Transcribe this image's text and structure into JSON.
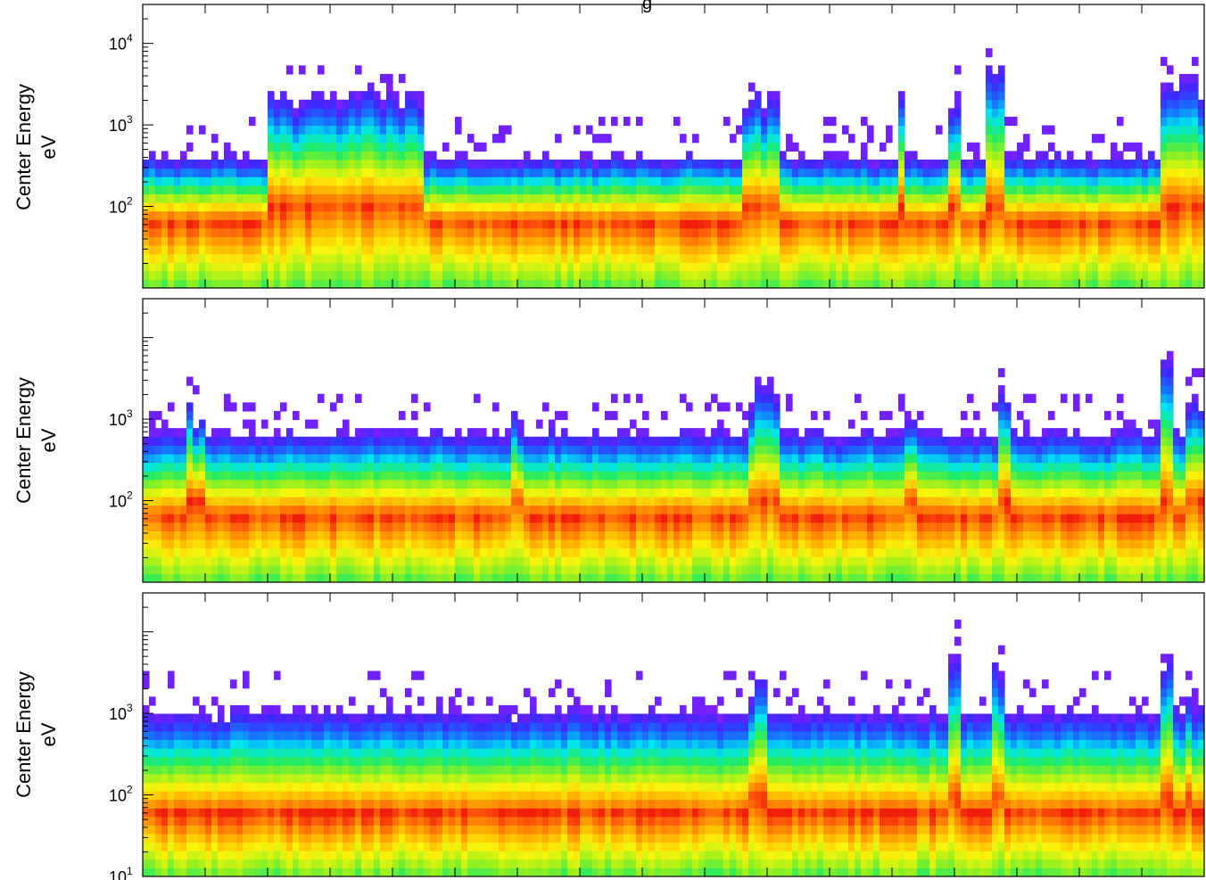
{
  "figure": {
    "title_fragment": "g"
  },
  "chart_data": [
    {
      "type": "heatmap",
      "panel": "top",
      "ylabel_line1": "Center Energy",
      "ylabel_line2": "eV",
      "yscale": "log",
      "ylim": [
        10,
        30000
      ],
      "y_ticks": [
        {
          "base": "10",
          "exp": "4",
          "value": 10000
        },
        {
          "base": "10",
          "exp": "3",
          "value": 1000
        },
        {
          "base": "10",
          "exp": "2",
          "value": 100
        }
      ],
      "x_ticks_count": 17,
      "events": [
        {
          "x0": 0.12,
          "x1": 0.265,
          "peak": 2500
        },
        {
          "x0": 0.565,
          "x1": 0.6,
          "peak": 2500
        },
        {
          "x0": 0.71,
          "x1": 0.72,
          "peak": 2800
        },
        {
          "x0": 0.76,
          "x1": 0.77,
          "peak": 2500
        },
        {
          "x0": 0.795,
          "x1": 0.81,
          "peak": 5000
        },
        {
          "x0": 0.96,
          "x1": 0.975,
          "peak": 2800
        },
        {
          "x0": 0.975,
          "x1": 1.0,
          "peak": 3500
        }
      ],
      "baseline_top_ev": 350,
      "peak_band_ev": 60,
      "bottom_value_ev": 11
    },
    {
      "type": "heatmap",
      "panel": "middle",
      "ylabel_line1": "Center Energy",
      "ylabel_line2": "eV",
      "yscale": "log",
      "ylim": [
        10,
        30000
      ],
      "y_ticks": [
        {
          "base": "10",
          "exp": "3",
          "value": 1000
        },
        {
          "base": "10",
          "exp": "2",
          "value": 100
        }
      ],
      "x_ticks_count": 17,
      "events": [
        {
          "x0": 0.04,
          "x1": 0.06,
          "peak": 1500
        },
        {
          "x0": 0.35,
          "x1": 0.36,
          "peak": 1200
        },
        {
          "x0": 0.57,
          "x1": 0.6,
          "peak": 2500
        },
        {
          "x0": 0.72,
          "x1": 0.73,
          "peak": 1500
        },
        {
          "x0": 0.805,
          "x1": 0.82,
          "peak": 3000
        },
        {
          "x0": 0.96,
          "x1": 0.97,
          "peak": 5000
        },
        {
          "x0": 0.98,
          "x1": 1.0,
          "peak": 1700
        }
      ],
      "baseline_top_ev": 600,
      "peak_band_ev": 60,
      "bottom_value_ev": 11
    },
    {
      "type": "heatmap",
      "panel": "bottom",
      "ylabel_line1": "Center Energy",
      "ylabel_line2": "eV",
      "yscale": "log",
      "ylim": [
        10,
        30000
      ],
      "y_ticks": [
        {
          "base": "10",
          "exp": "3",
          "value": 1000
        },
        {
          "base": "10",
          "exp": "2",
          "value": 100
        },
        {
          "base": "10",
          "exp": "1",
          "value": 10
        }
      ],
      "x_ticks_count": 17,
      "events": [
        {
          "x0": 0.57,
          "x1": 0.59,
          "peak": 2500
        },
        {
          "x0": 0.76,
          "x1": 0.77,
          "peak": 4000
        },
        {
          "x0": 0.8,
          "x1": 0.81,
          "peak": 4000
        },
        {
          "x0": 0.96,
          "x1": 0.97,
          "peak": 6000
        },
        {
          "x0": 0.98,
          "x1": 0.99,
          "peak": 2000
        }
      ],
      "baseline_top_ev": 900,
      "peak_band_ev": 55,
      "bottom_value_ev": 11
    }
  ]
}
